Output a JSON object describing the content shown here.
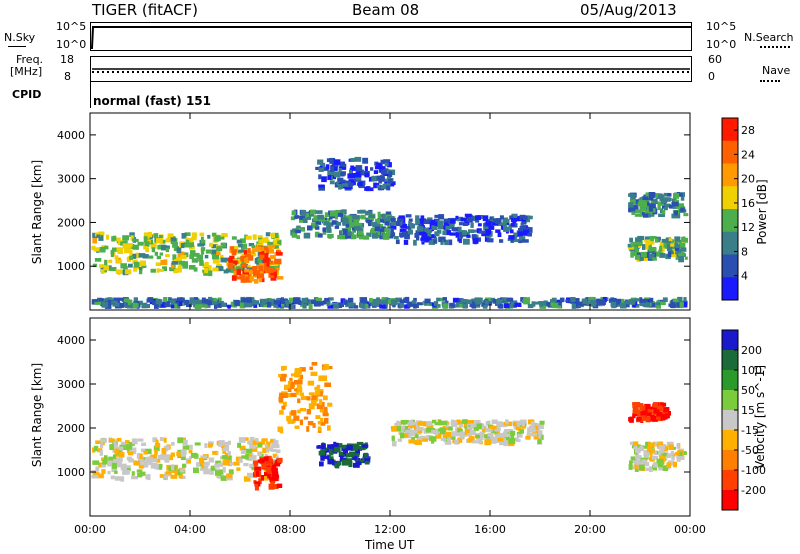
{
  "header": {
    "station": "TIGER (fitACF)",
    "beam": "Beam 08",
    "date": "05/Aug/2013"
  },
  "top_panels": {
    "nsky_label": "N.Sky",
    "nsky_ticks": [
      "10^5",
      "10^0"
    ],
    "nsearch_label": "N.Search",
    "freq_label_1": "Freq.",
    "freq_label_2": "[MHz]",
    "freq_ticks": [
      "18",
      "8"
    ],
    "nave_label": "Nave",
    "nave_ticks": [
      "60",
      "0"
    ],
    "cpid_label": "CPID",
    "cpid_value": "normal (fast) 151"
  },
  "x_axis": {
    "label": "Time UT",
    "ticks": [
      "00:00",
      "04:00",
      "08:00",
      "12:00",
      "16:00",
      "20:00",
      "00:00"
    ]
  },
  "chart_data": [
    {
      "type": "heatmap",
      "parameter": "Power",
      "colorbar_label": "Power [dB]",
      "ylabel": "Slant Range [km]",
      "xlabel": "Time UT",
      "x_range_hours": [
        0,
        24
      ],
      "ylim": [
        0,
        4500
      ],
      "y_ticks": [
        1000,
        2000,
        3000,
        4000
      ],
      "colorbar_ticks": [
        4,
        8,
        12,
        16,
        20,
        24,
        28
      ],
      "colorbar_range": [
        0,
        30
      ],
      "colors": [
        "#1a1aff",
        "#2a4fb0",
        "#3a7e8a",
        "#4cae4c",
        "#f0d000",
        "#ff9a00",
        "#ff6000",
        "#ff1a00"
      ],
      "features": [
        {
          "t": [
            0.0,
            7.5
          ],
          "r": [
            900,
            1800
          ],
          "level": 14,
          "note": "main band"
        },
        {
          "t": [
            5.5,
            7.5
          ],
          "r": [
            700,
            1500
          ],
          "level": 24
        },
        {
          "t": [
            8.0,
            12.0
          ],
          "r": [
            1700,
            2300
          ],
          "level": 10
        },
        {
          "t": [
            9.0,
            12.0
          ],
          "r": [
            2800,
            3500
          ],
          "level": 5
        },
        {
          "t": [
            12.0,
            17.5
          ],
          "r": [
            1600,
            2200
          ],
          "level": 6
        },
        {
          "t": [
            21.5,
            24.0
          ],
          "r": [
            1200,
            1700
          ],
          "level": 12
        },
        {
          "t": [
            21.5,
            24.0
          ],
          "r": [
            2200,
            2700
          ],
          "level": 10
        },
        {
          "t": [
            0.0,
            24.0
          ],
          "r": [
            0,
            300
          ],
          "level": 8,
          "note": "near-range scatter"
        }
      ]
    },
    {
      "type": "heatmap",
      "parameter": "Velocity",
      "colorbar_label": "Velocity [m s^-1]",
      "ylabel": "Slant Range [km]",
      "xlabel": "Time UT",
      "x_range_hours": [
        0,
        24
      ],
      "ylim": [
        0,
        4500
      ],
      "y_ticks": [
        1000,
        2000,
        3000,
        4000
      ],
      "colorbar_ticks": [
        200,
        100,
        50,
        15,
        -15,
        -50,
        -100,
        -200
      ],
      "colors": [
        "#1a1acc",
        "#1a6a3a",
        "#2a9a2a",
        "#7acc3a",
        "#c8c8c8",
        "#ffb000",
        "#ff8000",
        "#ff4000",
        "#ff0000"
      ],
      "features": [
        {
          "t": [
            0.0,
            7.5
          ],
          "r": [
            900,
            1800
          ],
          "level": 0
        },
        {
          "t": [
            6.5,
            7.5
          ],
          "r": [
            700,
            1400
          ],
          "level": -200
        },
        {
          "t": [
            7.5,
            9.5
          ],
          "r": [
            2000,
            3500
          ],
          "level": -50
        },
        {
          "t": [
            9.0,
            11.0
          ],
          "r": [
            1200,
            1700
          ],
          "level": 200
        },
        {
          "t": [
            12.0,
            18.0
          ],
          "r": [
            1700,
            2200
          ],
          "level": 0
        },
        {
          "t": [
            21.5,
            23.0
          ],
          "r": [
            2200,
            2600
          ],
          "level": -200
        },
        {
          "t": [
            21.5,
            24.0
          ],
          "r": [
            1100,
            1700
          ],
          "level": 0
        }
      ]
    }
  ]
}
